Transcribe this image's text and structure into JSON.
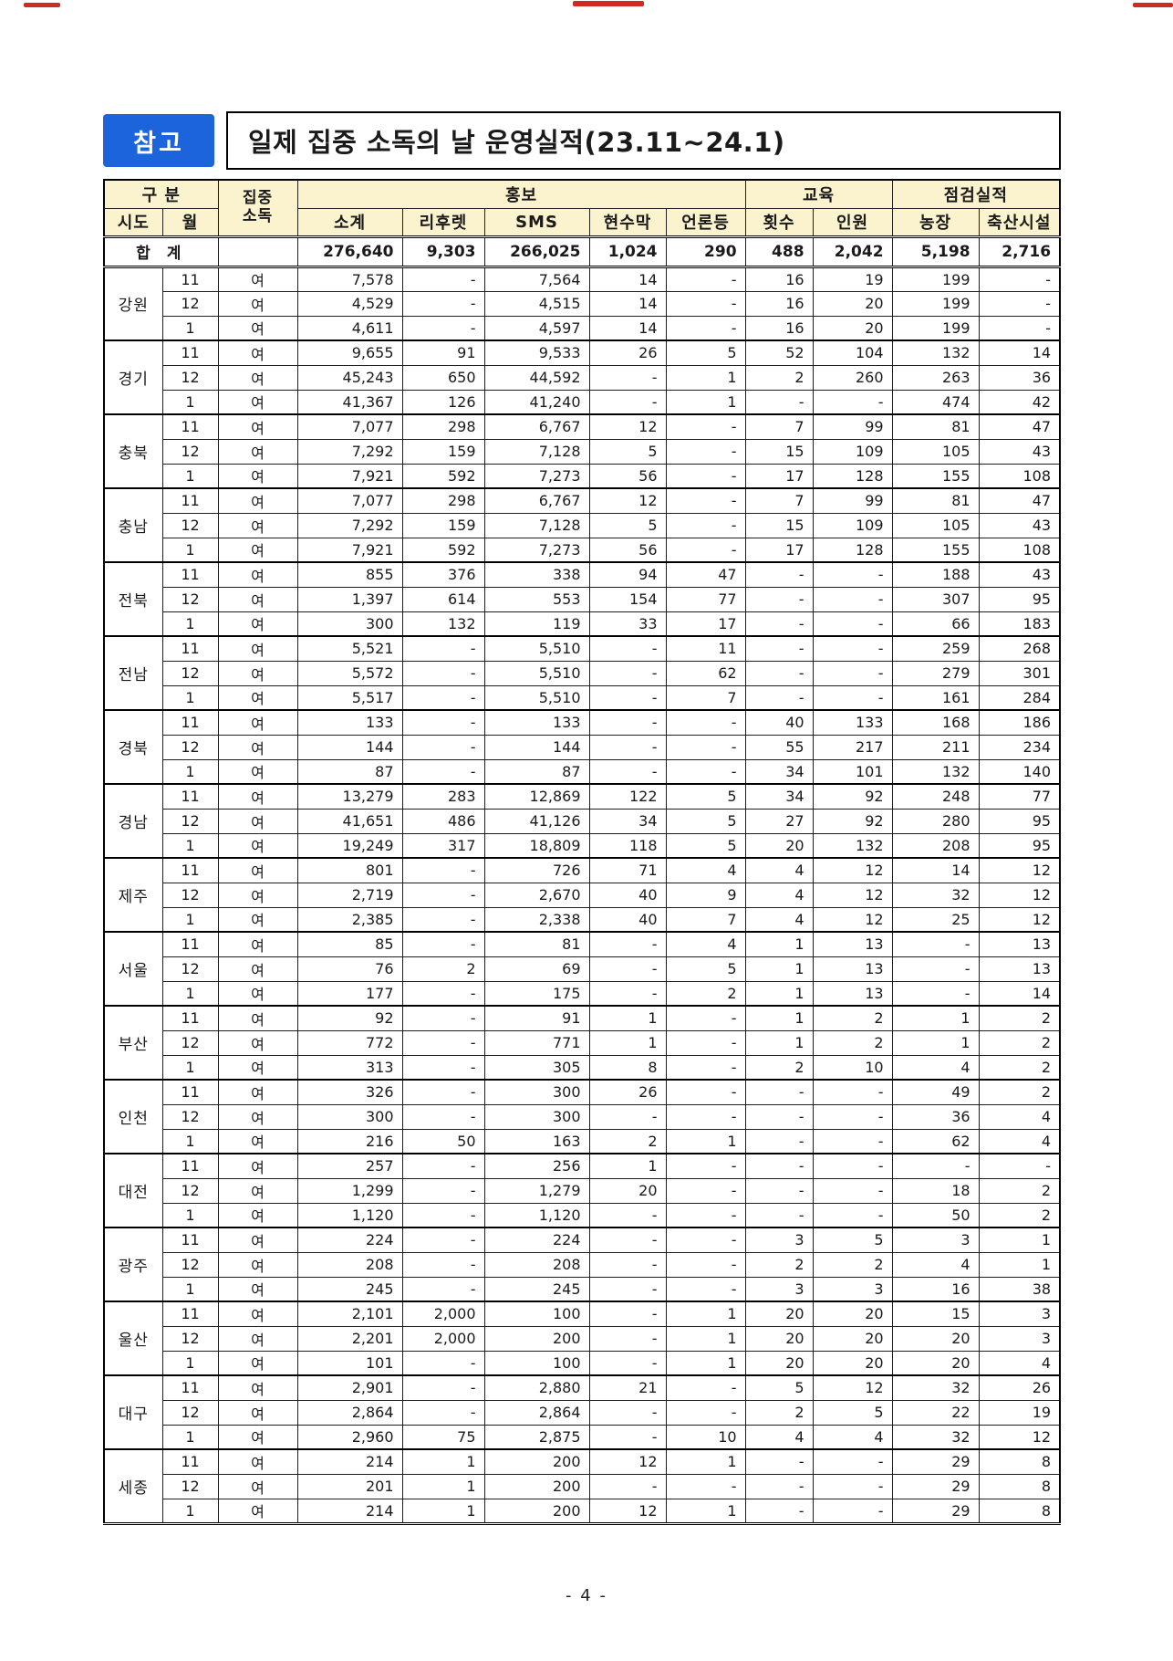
{
  "page": {
    "badge": "참고",
    "title": "일제 집중 소독의 날 운영실적(23.11~24.1)",
    "page_number": "- 4 -"
  },
  "colors": {
    "badge_bg": "#1b64db",
    "header_bg": "#fbf3ce",
    "border": "#000000",
    "scan_mark_red": "#cf2b20"
  },
  "table": {
    "header": {
      "gubun": "구 분",
      "sido": "시도",
      "month": "월",
      "sodok": "집중\n소독",
      "hongbo": "홍보",
      "hongbo_cols": [
        "소계",
        "리후렛",
        "SMS",
        "현수막",
        "언론등"
      ],
      "gyoyuk": "교육",
      "gyoyuk_cols": [
        "횟수",
        "인원"
      ],
      "jeomgeom": "점검실적",
      "jeomgeom_cols": [
        "농장",
        "축산시설"
      ]
    },
    "total": {
      "label": "합 계",
      "values": [
        "276,640",
        "9,303",
        "266,025",
        "1,024",
        "290",
        "488",
        "2,042",
        "5,198",
        "2,716"
      ]
    },
    "regions": [
      {
        "name": "강원",
        "rows": [
          {
            "month": "11",
            "sodok": "여",
            "values": [
              "7,578",
              "-",
              "7,564",
              "14",
              "-",
              "16",
              "19",
              "199",
              "-"
            ]
          },
          {
            "month": "12",
            "sodok": "여",
            "values": [
              "4,529",
              "-",
              "4,515",
              "14",
              "-",
              "16",
              "20",
              "199",
              "-"
            ]
          },
          {
            "month": "1",
            "sodok": "여",
            "values": [
              "4,611",
              "-",
              "4,597",
              "14",
              "-",
              "16",
              "20",
              "199",
              "-"
            ]
          }
        ]
      },
      {
        "name": "경기",
        "rows": [
          {
            "month": "11",
            "sodok": "여",
            "values": [
              "9,655",
              "91",
              "9,533",
              "26",
              "5",
              "52",
              "104",
              "132",
              "14"
            ]
          },
          {
            "month": "12",
            "sodok": "여",
            "values": [
              "45,243",
              "650",
              "44,592",
              "-",
              "1",
              "2",
              "260",
              "263",
              "36"
            ]
          },
          {
            "month": "1",
            "sodok": "여",
            "values": [
              "41,367",
              "126",
              "41,240",
              "-",
              "1",
              "-",
              "-",
              "474",
              "42"
            ]
          }
        ]
      },
      {
        "name": "충북",
        "rows": [
          {
            "month": "11",
            "sodok": "여",
            "values": [
              "7,077",
              "298",
              "6,767",
              "12",
              "-",
              "7",
              "99",
              "81",
              "47"
            ]
          },
          {
            "month": "12",
            "sodok": "여",
            "values": [
              "7,292",
              "159",
              "7,128",
              "5",
              "-",
              "15",
              "109",
              "105",
              "43"
            ]
          },
          {
            "month": "1",
            "sodok": "여",
            "values": [
              "7,921",
              "592",
              "7,273",
              "56",
              "-",
              "17",
              "128",
              "155",
              "108"
            ]
          }
        ]
      },
      {
        "name": "충남",
        "rows": [
          {
            "month": "11",
            "sodok": "여",
            "values": [
              "7,077",
              "298",
              "6,767",
              "12",
              "-",
              "7",
              "99",
              "81",
              "47"
            ]
          },
          {
            "month": "12",
            "sodok": "여",
            "values": [
              "7,292",
              "159",
              "7,128",
              "5",
              "-",
              "15",
              "109",
              "105",
              "43"
            ]
          },
          {
            "month": "1",
            "sodok": "여",
            "values": [
              "7,921",
              "592",
              "7,273",
              "56",
              "-",
              "17",
              "128",
              "155",
              "108"
            ]
          }
        ]
      },
      {
        "name": "전북",
        "rows": [
          {
            "month": "11",
            "sodok": "여",
            "values": [
              "855",
              "376",
              "338",
              "94",
              "47",
              "-",
              "-",
              "188",
              "43"
            ]
          },
          {
            "month": "12",
            "sodok": "여",
            "values": [
              "1,397",
              "614",
              "553",
              "154",
              "77",
              "-",
              "-",
              "307",
              "95"
            ]
          },
          {
            "month": "1",
            "sodok": "여",
            "values": [
              "300",
              "132",
              "119",
              "33",
              "17",
              "-",
              "-",
              "66",
              "183"
            ]
          }
        ]
      },
      {
        "name": "전남",
        "rows": [
          {
            "month": "11",
            "sodok": "여",
            "values": [
              "5,521",
              "-",
              "5,510",
              "-",
              "11",
              "-",
              "-",
              "259",
              "268"
            ]
          },
          {
            "month": "12",
            "sodok": "여",
            "values": [
              "5,572",
              "-",
              "5,510",
              "-",
              "62",
              "-",
              "-",
              "279",
              "301"
            ]
          },
          {
            "month": "1",
            "sodok": "여",
            "values": [
              "5,517",
              "-",
              "5,510",
              "-",
              "7",
              "-",
              "-",
              "161",
              "284"
            ]
          }
        ]
      },
      {
        "name": "경북",
        "rows": [
          {
            "month": "11",
            "sodok": "여",
            "values": [
              "133",
              "-",
              "133",
              "-",
              "-",
              "40",
              "133",
              "168",
              "186"
            ]
          },
          {
            "month": "12",
            "sodok": "여",
            "values": [
              "144",
              "-",
              "144",
              "-",
              "-",
              "55",
              "217",
              "211",
              "234"
            ]
          },
          {
            "month": "1",
            "sodok": "여",
            "values": [
              "87",
              "-",
              "87",
              "-",
              "-",
              "34",
              "101",
              "132",
              "140"
            ]
          }
        ]
      },
      {
        "name": "경남",
        "rows": [
          {
            "month": "11",
            "sodok": "여",
            "values": [
              "13,279",
              "283",
              "12,869",
              "122",
              "5",
              "34",
              "92",
              "248",
              "77"
            ]
          },
          {
            "month": "12",
            "sodok": "여",
            "values": [
              "41,651",
              "486",
              "41,126",
              "34",
              "5",
              "27",
              "92",
              "280",
              "95"
            ]
          },
          {
            "month": "1",
            "sodok": "여",
            "values": [
              "19,249",
              "317",
              "18,809",
              "118",
              "5",
              "20",
              "132",
              "208",
              "95"
            ]
          }
        ]
      },
      {
        "name": "제주",
        "rows": [
          {
            "month": "11",
            "sodok": "여",
            "values": [
              "801",
              "-",
              "726",
              "71",
              "4",
              "4",
              "12",
              "14",
              "12"
            ]
          },
          {
            "month": "12",
            "sodok": "여",
            "values": [
              "2,719",
              "-",
              "2,670",
              "40",
              "9",
              "4",
              "12",
              "32",
              "12"
            ]
          },
          {
            "month": "1",
            "sodok": "여",
            "values": [
              "2,385",
              "-",
              "2,338",
              "40",
              "7",
              "4",
              "12",
              "25",
              "12"
            ]
          }
        ]
      },
      {
        "name": "서울",
        "rows": [
          {
            "month": "11",
            "sodok": "여",
            "values": [
              "85",
              "-",
              "81",
              "-",
              "4",
              "1",
              "13",
              "-",
              "13"
            ]
          },
          {
            "month": "12",
            "sodok": "여",
            "values": [
              "76",
              "2",
              "69",
              "-",
              "5",
              "1",
              "13",
              "-",
              "13"
            ]
          },
          {
            "month": "1",
            "sodok": "여",
            "values": [
              "177",
              "-",
              "175",
              "-",
              "2",
              "1",
              "13",
              "-",
              "14"
            ]
          }
        ]
      },
      {
        "name": "부산",
        "rows": [
          {
            "month": "11",
            "sodok": "여",
            "values": [
              "92",
              "-",
              "91",
              "1",
              "-",
              "1",
              "2",
              "1",
              "2"
            ]
          },
          {
            "month": "12",
            "sodok": "여",
            "values": [
              "772",
              "-",
              "771",
              "1",
              "-",
              "1",
              "2",
              "1",
              "2"
            ]
          },
          {
            "month": "1",
            "sodok": "여",
            "values": [
              "313",
              "-",
              "305",
              "8",
              "-",
              "2",
              "10",
              "4",
              "2"
            ]
          }
        ]
      },
      {
        "name": "인천",
        "rows": [
          {
            "month": "11",
            "sodok": "여",
            "values": [
              "326",
              "-",
              "300",
              "26",
              "-",
              "-",
              "-",
              "49",
              "2"
            ]
          },
          {
            "month": "12",
            "sodok": "여",
            "values": [
              "300",
              "-",
              "300",
              "-",
              "-",
              "-",
              "-",
              "36",
              "4"
            ]
          },
          {
            "month": "1",
            "sodok": "여",
            "values": [
              "216",
              "50",
              "163",
              "2",
              "1",
              "-",
              "-",
              "62",
              "4"
            ]
          }
        ]
      },
      {
        "name": "대전",
        "rows": [
          {
            "month": "11",
            "sodok": "여",
            "values": [
              "257",
              "-",
              "256",
              "1",
              "-",
              "-",
              "-",
              "-",
              "-"
            ]
          },
          {
            "month": "12",
            "sodok": "여",
            "values": [
              "1,299",
              "-",
              "1,279",
              "20",
              "-",
              "-",
              "-",
              "18",
              "2"
            ]
          },
          {
            "month": "1",
            "sodok": "여",
            "values": [
              "1,120",
              "-",
              "1,120",
              "-",
              "-",
              "-",
              "-",
              "50",
              "2"
            ]
          }
        ]
      },
      {
        "name": "광주",
        "rows": [
          {
            "month": "11",
            "sodok": "여",
            "values": [
              "224",
              "-",
              "224",
              "-",
              "-",
              "3",
              "5",
              "3",
              "1"
            ]
          },
          {
            "month": "12",
            "sodok": "여",
            "values": [
              "208",
              "-",
              "208",
              "-",
              "-",
              "2",
              "2",
              "4",
              "1"
            ]
          },
          {
            "month": "1",
            "sodok": "여",
            "values": [
              "245",
              "-",
              "245",
              "-",
              "-",
              "3",
              "3",
              "16",
              "38"
            ]
          }
        ]
      },
      {
        "name": "울산",
        "rows": [
          {
            "month": "11",
            "sodok": "여",
            "values": [
              "2,101",
              "2,000",
              "100",
              "-",
              "1",
              "20",
              "20",
              "15",
              "3"
            ]
          },
          {
            "month": "12",
            "sodok": "여",
            "values": [
              "2,201",
              "2,000",
              "200",
              "-",
              "1",
              "20",
              "20",
              "20",
              "3"
            ]
          },
          {
            "month": "1",
            "sodok": "여",
            "values": [
              "101",
              "-",
              "100",
              "-",
              "1",
              "20",
              "20",
              "20",
              "4"
            ]
          }
        ]
      },
      {
        "name": "대구",
        "rows": [
          {
            "month": "11",
            "sodok": "여",
            "values": [
              "2,901",
              "-",
              "2,880",
              "21",
              "-",
              "5",
              "12",
              "32",
              "26"
            ]
          },
          {
            "month": "12",
            "sodok": "여",
            "values": [
              "2,864",
              "-",
              "2,864",
              "-",
              "-",
              "2",
              "5",
              "22",
              "19"
            ]
          },
          {
            "month": "1",
            "sodok": "여",
            "values": [
              "2,960",
              "75",
              "2,875",
              "-",
              "10",
              "4",
              "4",
              "32",
              "12"
            ]
          }
        ]
      },
      {
        "name": "세종",
        "rows": [
          {
            "month": "11",
            "sodok": "여",
            "values": [
              "214",
              "1",
              "200",
              "12",
              "1",
              "-",
              "-",
              "29",
              "8"
            ]
          },
          {
            "month": "12",
            "sodok": "여",
            "values": [
              "201",
              "1",
              "200",
              "-",
              "-",
              "-",
              "-",
              "29",
              "8"
            ]
          },
          {
            "month": "1",
            "sodok": "여",
            "values": [
              "214",
              "1",
              "200",
              "12",
              "1",
              "-",
              "-",
              "29",
              "8"
            ]
          }
        ]
      }
    ]
  }
}
